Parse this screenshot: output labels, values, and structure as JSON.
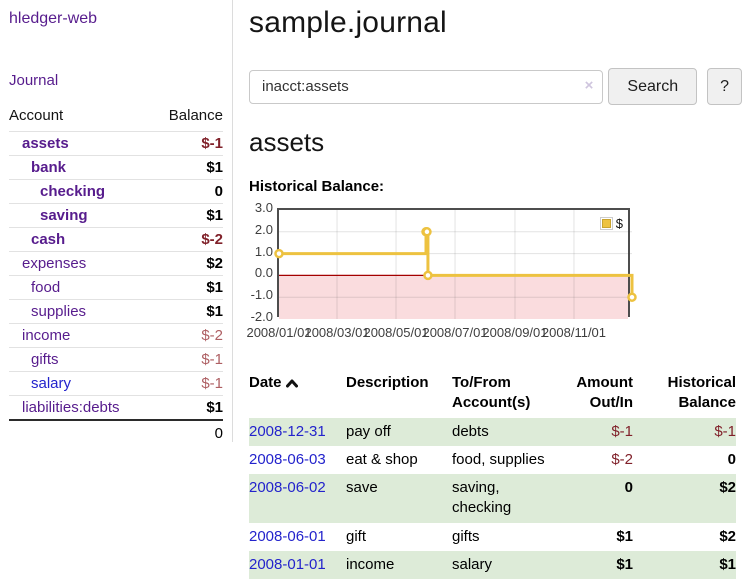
{
  "app": {
    "brand": "hledger-web"
  },
  "sidebar": {
    "nav_journal": "Journal",
    "columns": {
      "account": "Account",
      "balance": "Balance"
    },
    "accounts": [
      {
        "name": "assets",
        "indent": 0,
        "bold": true,
        "link_color": "purple",
        "balance": "$-1",
        "balance_style": "negative-strong",
        "balance_bold": true
      },
      {
        "name": "bank",
        "indent": 1,
        "bold": true,
        "link_color": "purple",
        "balance": "$1",
        "balance_style": "normal",
        "balance_bold": true
      },
      {
        "name": "checking",
        "indent": 2,
        "bold": true,
        "link_color": "purple",
        "balance": "0",
        "balance_style": "normal",
        "balance_bold": true
      },
      {
        "name": "saving",
        "indent": 2,
        "bold": true,
        "link_color": "purple",
        "balance": "$1",
        "balance_style": "normal",
        "balance_bold": true
      },
      {
        "name": "cash",
        "indent": 1,
        "bold": true,
        "link_color": "purple",
        "balance": "$-2",
        "balance_style": "negative-strong",
        "balance_bold": true
      },
      {
        "name": "expenses",
        "indent": 0,
        "bold": false,
        "link_color": "purple",
        "balance": "$2",
        "balance_style": "normal",
        "balance_bold": true
      },
      {
        "name": "food",
        "indent": 1,
        "bold": false,
        "link_color": "purple",
        "balance": "$1",
        "balance_style": "normal",
        "balance_bold": true
      },
      {
        "name": "supplies",
        "indent": 1,
        "bold": false,
        "link_color": "purple",
        "balance": "$1",
        "balance_style": "normal",
        "balance_bold": true
      },
      {
        "name": "income",
        "indent": 0,
        "bold": false,
        "link_color": "purple",
        "balance": "$-2",
        "balance_style": "negative-muted",
        "balance_bold": false
      },
      {
        "name": "gifts",
        "indent": 1,
        "bold": false,
        "link_color": "purple",
        "balance": "$-1",
        "balance_style": "negative-muted",
        "balance_bold": false
      },
      {
        "name": "salary",
        "indent": 1,
        "bold": false,
        "link_color": "blue",
        "balance": "$-1",
        "balance_style": "negative-muted",
        "balance_bold": false
      },
      {
        "name": "liabilities:debts",
        "indent": 0,
        "bold": false,
        "link_color": "purple",
        "balance": "$1",
        "balance_style": "normal",
        "balance_bold": true
      }
    ],
    "total": "0"
  },
  "main": {
    "title": "sample.journal",
    "search": {
      "value": "inacct:assets",
      "clear_icon": "×",
      "search_button": "Search",
      "help_button": "?"
    },
    "account_heading": "assets",
    "chart_heading": "Historical Balance:"
  },
  "chart_data": {
    "type": "line",
    "step": true,
    "title": "Historical Balance",
    "legend_position": "top-right",
    "grid": true,
    "ylim": [
      -2,
      3
    ],
    "x_range_days": [
      0,
      365
    ],
    "series": [
      {
        "name": "$",
        "color": "#EDC240",
        "points": [
          {
            "date": "2008-01-01",
            "day": 0,
            "value": 1
          },
          {
            "date": "2008-06-01",
            "day": 152,
            "value": 2
          },
          {
            "date": "2008-06-02",
            "day": 153,
            "value": 2
          },
          {
            "date": "2008-06-03",
            "day": 154,
            "value": 0
          },
          {
            "date": "2008-12-31",
            "day": 365,
            "value": -1
          }
        ]
      }
    ],
    "x_ticks": [
      {
        "label": "2008/01/01",
        "day": 0
      },
      {
        "label": "2008/03/01",
        "day": 60
      },
      {
        "label": "2008/05/01",
        "day": 121
      },
      {
        "label": "2008/07/01",
        "day": 182
      },
      {
        "label": "2008/09/01",
        "day": 244
      },
      {
        "label": "2008/11/01",
        "day": 305
      }
    ],
    "y_ticks": [
      {
        "label": "3.0",
        "value": 3
      },
      {
        "label": "2.0",
        "value": 2
      },
      {
        "label": "1.0",
        "value": 1
      },
      {
        "label": "0.0",
        "value": 0
      },
      {
        "label": "-1.0",
        "value": -1
      },
      {
        "label": "-2.0",
        "value": -2
      }
    ]
  },
  "register": {
    "columns": [
      "Date",
      "Description",
      "To/From Account(s)",
      "Amount Out/In",
      "Historical Balance"
    ],
    "sort_icon": "chevron-up",
    "rows": [
      {
        "date": "2008-12-31",
        "description": "pay off",
        "accounts": "debts",
        "amount": "$-1",
        "amount_negative": true,
        "amount_bold": false,
        "balance": "$-1",
        "balance_negative": true,
        "balance_bold": false,
        "shaded": true
      },
      {
        "date": "2008-06-03",
        "description": "eat & shop",
        "accounts": "food, supplies",
        "amount": "$-2",
        "amount_negative": true,
        "amount_bold": false,
        "balance": "0",
        "balance_negative": false,
        "balance_bold": true,
        "shaded": false
      },
      {
        "date": "2008-06-02",
        "description": "save",
        "accounts": "saving, checking",
        "amount": "0",
        "amount_negative": false,
        "amount_bold": true,
        "balance": "$2",
        "balance_negative": false,
        "balance_bold": true,
        "shaded": true
      },
      {
        "date": "2008-06-01",
        "description": "gift",
        "accounts": "gifts",
        "amount": "$1",
        "amount_negative": false,
        "amount_bold": true,
        "balance": "$2",
        "balance_negative": false,
        "balance_bold": true,
        "shaded": false
      },
      {
        "date": "2008-01-01",
        "description": "income",
        "accounts": "salary",
        "amount": "$1",
        "amount_negative": false,
        "amount_bold": true,
        "balance": "$1",
        "balance_negative": false,
        "balance_bold": true,
        "shaded": true
      }
    ]
  },
  "colors": {
    "link_visited_purple": "#571c8d",
    "link_unvisited_blue": "#2323cc",
    "negative_strong": "#80212a",
    "negative_muted": "#ae5f63",
    "row_shaded_green": "#ddebd8",
    "series_gold": "#EDC240",
    "negative_region_pink": "#fadcde",
    "zero_line_red": "#a40000",
    "chart_border_gray": "#4d4d4d"
  }
}
